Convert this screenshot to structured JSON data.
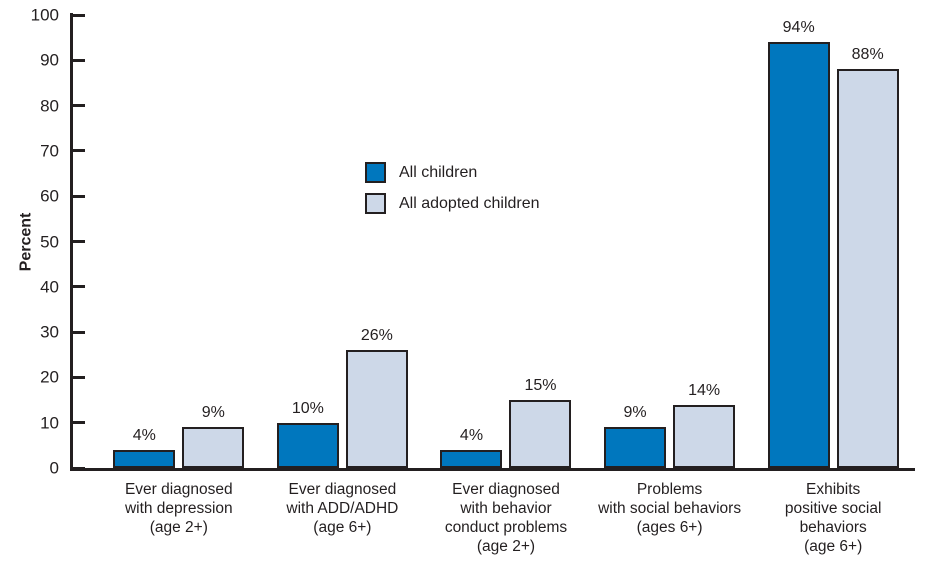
{
  "chart_data": {
    "type": "bar",
    "title": "",
    "xlabel": "",
    "ylabel": "Percent",
    "ylim": [
      0,
      100
    ],
    "yticks": [
      0,
      10,
      20,
      30,
      40,
      50,
      60,
      70,
      80,
      90,
      100
    ],
    "grid": false,
    "legend_position": "inside upper-middle-left",
    "categories": [
      [
        "Ever diagnosed",
        "with depression",
        "(age 2+)"
      ],
      [
        "Ever diagnosed",
        "with ADD/ADHD",
        "(age 6+)"
      ],
      [
        "Ever diagnosed",
        "with behavior",
        "conduct problems",
        "(age 2+)"
      ],
      [
        "Problems",
        "with social behaviors",
        "(ages 6+)"
      ],
      [
        "Exhibits",
        "positive social",
        "behaviors",
        "(age 6+)"
      ]
    ],
    "series": [
      {
        "name": "All children",
        "color": "#0077BE",
        "values": [
          4,
          10,
          4,
          9,
          94
        ],
        "value_labels": [
          "4%",
          "10%",
          "4%",
          "9%",
          "94%"
        ]
      },
      {
        "name": "All adopted children",
        "color": "#CDD8E8",
        "values": [
          9,
          26,
          15,
          14,
          88
        ],
        "value_labels": [
          "9%",
          "26%",
          "15%",
          "14%",
          "88%"
        ]
      }
    ],
    "colors": {
      "bar_outline": "#231F20",
      "axis": "#231F20",
      "text": "#231F20",
      "background": "#FFFFFF"
    }
  }
}
